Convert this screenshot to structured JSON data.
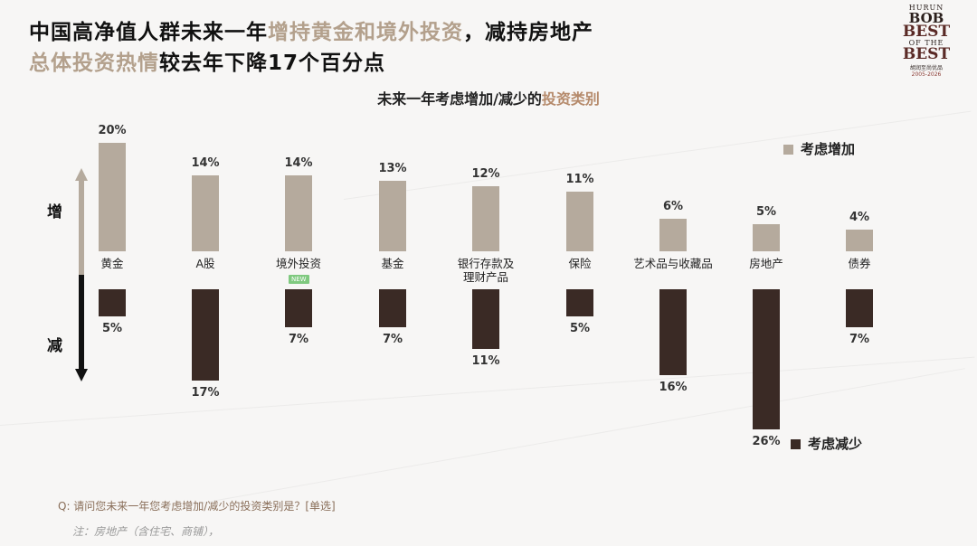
{
  "headline": {
    "line1_a": "中国高净值人群未来一年",
    "line1_b": "增持黄金和境外投资",
    "line1_c": "，减持房地产",
    "line2_a": "总体投资热情",
    "line2_b": "较去年下降17个百分点"
  },
  "logo": {
    "brand": "HURUN",
    "bob": "BOB",
    "best1": "BEST",
    "of_the": "OF THE",
    "best2": "BEST",
    "cn": "胡润至尚优品",
    "years": "2005-2026"
  },
  "chart_data": {
    "type": "bar",
    "title_a": "未来一年考虑增加/减少的",
    "title_b": "投资类别",
    "categories": [
      "黄金",
      "A股",
      "境外投资",
      "基金",
      "银行存款及\n理财产品",
      "保险",
      "艺术品与收藏品",
      "房地产",
      "债券"
    ],
    "series": [
      {
        "name": "考虑增加",
        "values": [
          20,
          14,
          14,
          13,
          12,
          11,
          6,
          5,
          4
        ]
      },
      {
        "name": "考虑减少",
        "values": [
          5,
          17,
          7,
          7,
          11,
          5,
          16,
          26,
          7
        ]
      }
    ],
    "value_suffix": "%",
    "axis_up_label": "增",
    "axis_down_label": "减",
    "new_badge_category": "境外投资",
    "new_badge_text": "NEW",
    "colors": {
      "increase": "#b5aa9d",
      "decrease": "#3a2a25"
    }
  },
  "footer": {
    "question": "Q: 请问您未来一年您考虑增加/减少的投资类别是？[单选]",
    "note": "注：房地产（含住宅、商铺），"
  }
}
